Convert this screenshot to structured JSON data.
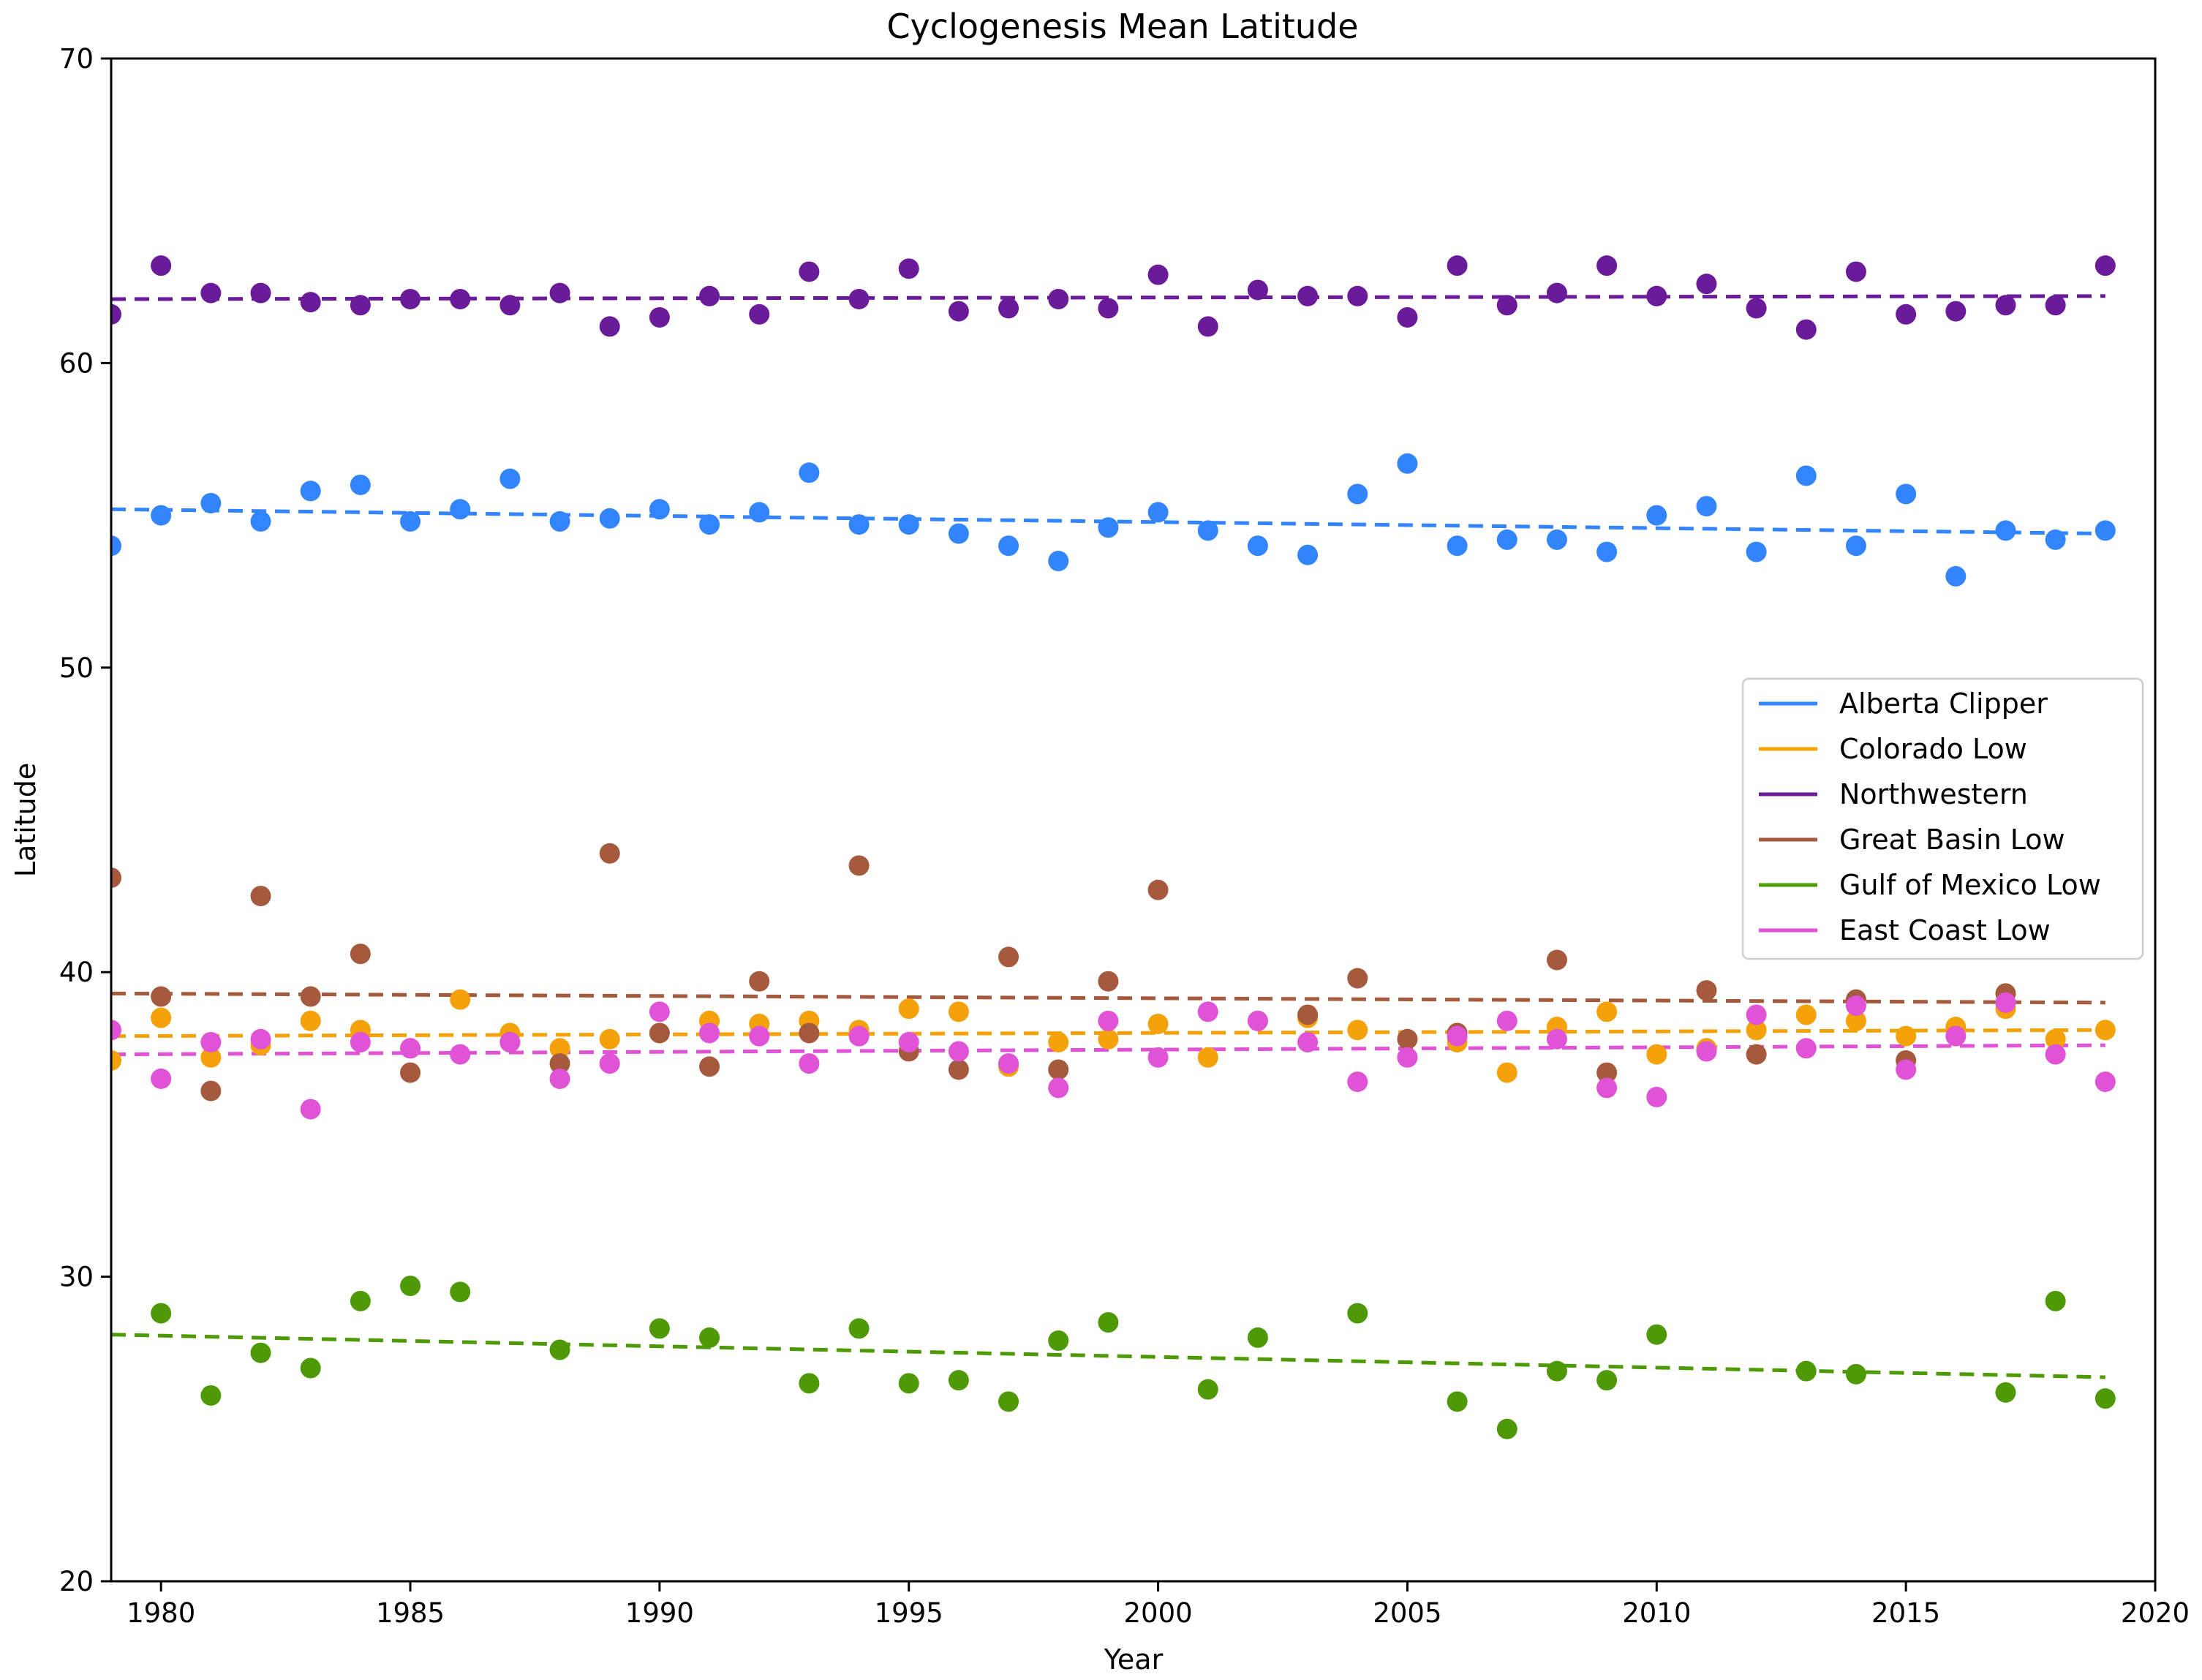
{
  "chart_data": {
    "type": "scatter",
    "title": "Cyclogenesis Mean Latitude",
    "xlabel": "Year",
    "ylabel": "Latitude",
    "xlim": [
      1979,
      2020
    ],
    "ylim": [
      20,
      70
    ],
    "xticks": [
      1980,
      1985,
      1990,
      1995,
      2000,
      2005,
      2010,
      2015,
      2020
    ],
    "yticks": [
      20,
      30,
      40,
      50,
      60,
      70
    ],
    "grid": false,
    "legend_position": "center-right",
    "series": [
      {
        "name": "Alberta Clipper",
        "color": "#3385ff",
        "trend": [
          55.2,
          54.4
        ],
        "points": [
          [
            1979,
            54.0
          ],
          [
            1980,
            55.0
          ],
          [
            1981,
            55.4
          ],
          [
            1982,
            54.8
          ],
          [
            1983,
            55.8
          ],
          [
            1984,
            56.0
          ],
          [
            1985,
            54.8
          ],
          [
            1986,
            55.2
          ],
          [
            1987,
            56.2
          ],
          [
            1988,
            54.8
          ],
          [
            1989,
            54.9
          ],
          [
            1990,
            55.2
          ],
          [
            1991,
            54.7
          ],
          [
            1992,
            55.1
          ],
          [
            1993,
            56.4
          ],
          [
            1994,
            54.7
          ],
          [
            1995,
            54.7
          ],
          [
            1996,
            54.4
          ],
          [
            1997,
            54.0
          ],
          [
            1998,
            53.5
          ],
          [
            1999,
            54.6
          ],
          [
            2000,
            55.1
          ],
          [
            2001,
            54.5
          ],
          [
            2002,
            54.0
          ],
          [
            2003,
            53.7
          ],
          [
            2004,
            55.7
          ],
          [
            2005,
            56.7
          ],
          [
            2006,
            54.0
          ],
          [
            2007,
            54.2
          ],
          [
            2008,
            54.2
          ],
          [
            2009,
            53.8
          ],
          [
            2010,
            55.0
          ],
          [
            2011,
            55.3
          ],
          [
            2012,
            53.8
          ],
          [
            2013,
            56.3
          ],
          [
            2014,
            54.0
          ],
          [
            2015,
            55.7
          ],
          [
            2016,
            53.0
          ],
          [
            2017,
            54.5
          ],
          [
            2018,
            54.2
          ],
          [
            2019,
            54.5
          ]
        ]
      },
      {
        "name": "Colorado Low",
        "color": "#f5a10a",
        "trend": [
          37.9,
          38.1
        ],
        "points": [
          [
            1979,
            37.1
          ],
          [
            1980,
            38.5
          ],
          [
            1981,
            37.2
          ],
          [
            1982,
            37.6
          ],
          [
            1983,
            38.4
          ],
          [
            1984,
            38.1
          ],
          [
            1985,
            37.5
          ],
          [
            1986,
            39.1
          ],
          [
            1987,
            38.0
          ],
          [
            1988,
            37.5
          ],
          [
            1989,
            37.8
          ],
          [
            1990,
            38.0
          ],
          [
            1991,
            38.4
          ],
          [
            1992,
            38.3
          ],
          [
            1993,
            38.4
          ],
          [
            1994,
            38.1
          ],
          [
            1995,
            38.8
          ],
          [
            1996,
            38.7
          ],
          [
            1997,
            36.9
          ],
          [
            1998,
            37.7
          ],
          [
            1999,
            37.8
          ],
          [
            2000,
            38.3
          ],
          [
            2001,
            37.2
          ],
          [
            2002,
            38.4
          ],
          [
            2003,
            38.5
          ],
          [
            2004,
            38.1
          ],
          [
            2005,
            37.8
          ],
          [
            2006,
            37.7
          ],
          [
            2007,
            36.7
          ],
          [
            2008,
            38.2
          ],
          [
            2009,
            38.7
          ],
          [
            2010,
            37.3
          ],
          [
            2011,
            37.5
          ],
          [
            2012,
            38.1
          ],
          [
            2013,
            38.6
          ],
          [
            2014,
            38.4
          ],
          [
            2015,
            37.9
          ],
          [
            2016,
            38.2
          ],
          [
            2017,
            38.8
          ],
          [
            2018,
            37.8
          ],
          [
            2019,
            38.1
          ]
        ]
      },
      {
        "name": "Northwestern",
        "color": "#6a1b9a",
        "trend": [
          62.1,
          62.2
        ],
        "points": [
          [
            1979,
            61.6
          ],
          [
            1980,
            63.2
          ],
          [
            1981,
            62.3
          ],
          [
            1982,
            62.3
          ],
          [
            1983,
            62.0
          ],
          [
            1984,
            61.9
          ],
          [
            1985,
            62.1
          ],
          [
            1986,
            62.1
          ],
          [
            1987,
            61.9
          ],
          [
            1988,
            62.3
          ],
          [
            1989,
            61.2
          ],
          [
            1990,
            61.5
          ],
          [
            1991,
            62.2
          ],
          [
            1992,
            61.6
          ],
          [
            1993,
            63.0
          ],
          [
            1994,
            62.1
          ],
          [
            1995,
            63.1
          ],
          [
            1996,
            61.7
          ],
          [
            1997,
            61.8
          ],
          [
            1998,
            62.1
          ],
          [
            1999,
            61.8
          ],
          [
            2000,
            62.9
          ],
          [
            2001,
            61.2
          ],
          [
            2002,
            62.4
          ],
          [
            2003,
            62.2
          ],
          [
            2004,
            62.2
          ],
          [
            2005,
            61.5
          ],
          [
            2006,
            63.2
          ],
          [
            2007,
            61.9
          ],
          [
            2008,
            62.3
          ],
          [
            2009,
            63.2
          ],
          [
            2010,
            62.2
          ],
          [
            2011,
            62.6
          ],
          [
            2012,
            61.8
          ],
          [
            2013,
            61.1
          ],
          [
            2014,
            63.0
          ],
          [
            2015,
            61.6
          ],
          [
            2016,
            61.7
          ],
          [
            2017,
            61.9
          ],
          [
            2018,
            61.9
          ],
          [
            2019,
            63.2
          ]
        ]
      },
      {
        "name": "Great Basin Low",
        "color": "#a55a3d",
        "trend": [
          39.3,
          39.0
        ],
        "points": [
          [
            1979,
            43.1
          ],
          [
            1980,
            39.2
          ],
          [
            1981,
            36.1
          ],
          [
            1982,
            42.5
          ],
          [
            1983,
            39.2
          ],
          [
            1984,
            40.6
          ],
          [
            1985,
            36.7
          ],
          [
            1987,
            37.7
          ],
          [
            1988,
            37.0
          ],
          [
            1989,
            43.9
          ],
          [
            1990,
            38.0
          ],
          [
            1991,
            36.9
          ],
          [
            1992,
            39.7
          ],
          [
            1993,
            38.0
          ],
          [
            1994,
            43.5
          ],
          [
            1995,
            37.4
          ],
          [
            1996,
            36.8
          ],
          [
            1997,
            40.5
          ],
          [
            1998,
            36.8
          ],
          [
            1999,
            39.7
          ],
          [
            2000,
            42.7
          ],
          [
            2003,
            38.6
          ],
          [
            2004,
            39.8
          ],
          [
            2005,
            37.8
          ],
          [
            2006,
            38.0
          ],
          [
            2008,
            40.4
          ],
          [
            2009,
            36.7
          ],
          [
            2011,
            39.4
          ],
          [
            2012,
            37.3
          ],
          [
            2014,
            39.1
          ],
          [
            2015,
            37.1
          ],
          [
            2017,
            39.3
          ]
        ]
      },
      {
        "name": "Gulf of Mexico Low",
        "color": "#4e9a06",
        "trend": [
          28.1,
          26.7
        ],
        "points": [
          [
            1980,
            28.8
          ],
          [
            1981,
            26.1
          ],
          [
            1982,
            27.5
          ],
          [
            1983,
            27.0
          ],
          [
            1984,
            29.2
          ],
          [
            1985,
            29.7
          ],
          [
            1986,
            29.5
          ],
          [
            1988,
            27.6
          ],
          [
            1990,
            28.3
          ],
          [
            1991,
            28.0
          ],
          [
            1993,
            26.5
          ],
          [
            1994,
            28.3
          ],
          [
            1995,
            26.5
          ],
          [
            1996,
            26.6
          ],
          [
            1997,
            25.9
          ],
          [
            1998,
            27.9
          ],
          [
            1999,
            28.5
          ],
          [
            2001,
            26.3
          ],
          [
            2002,
            28.0
          ],
          [
            2004,
            28.8
          ],
          [
            2006,
            25.9
          ],
          [
            2007,
            25.0
          ],
          [
            2008,
            26.9
          ],
          [
            2009,
            26.6
          ],
          [
            2010,
            28.1
          ],
          [
            2013,
            26.9
          ],
          [
            2014,
            26.8
          ],
          [
            2017,
            26.2
          ],
          [
            2018,
            29.2
          ],
          [
            2019,
            26.0
          ]
        ]
      },
      {
        "name": "East Coast Low",
        "color": "#e052d6",
        "trend": [
          37.3,
          37.6
        ],
        "points": [
          [
            1979,
            38.1
          ],
          [
            1980,
            36.5
          ],
          [
            1981,
            37.7
          ],
          [
            1982,
            37.8
          ],
          [
            1983,
            35.5
          ],
          [
            1984,
            37.7
          ],
          [
            1985,
            37.5
          ],
          [
            1986,
            37.3
          ],
          [
            1987,
            37.7
          ],
          [
            1988,
            36.5
          ],
          [
            1989,
            37.0
          ],
          [
            1990,
            38.7
          ],
          [
            1991,
            38.0
          ],
          [
            1992,
            37.9
          ],
          [
            1993,
            37.0
          ],
          [
            1994,
            37.9
          ],
          [
            1995,
            37.7
          ],
          [
            1996,
            37.4
          ],
          [
            1997,
            37.0
          ],
          [
            1998,
            36.2
          ],
          [
            1999,
            38.4
          ],
          [
            2000,
            37.2
          ],
          [
            2001,
            38.7
          ],
          [
            2002,
            38.4
          ],
          [
            2003,
            37.7
          ],
          [
            2004,
            36.4
          ],
          [
            2005,
            37.2
          ],
          [
            2006,
            37.9
          ],
          [
            2007,
            38.4
          ],
          [
            2008,
            37.8
          ],
          [
            2009,
            36.2
          ],
          [
            2010,
            35.9
          ],
          [
            2011,
            37.4
          ],
          [
            2012,
            38.6
          ],
          [
            2013,
            37.5
          ],
          [
            2014,
            38.9
          ],
          [
            2015,
            36.8
          ],
          [
            2016,
            37.9
          ],
          [
            2017,
            39.0
          ],
          [
            2018,
            37.3
          ],
          [
            2019,
            36.4
          ]
        ]
      }
    ]
  }
}
